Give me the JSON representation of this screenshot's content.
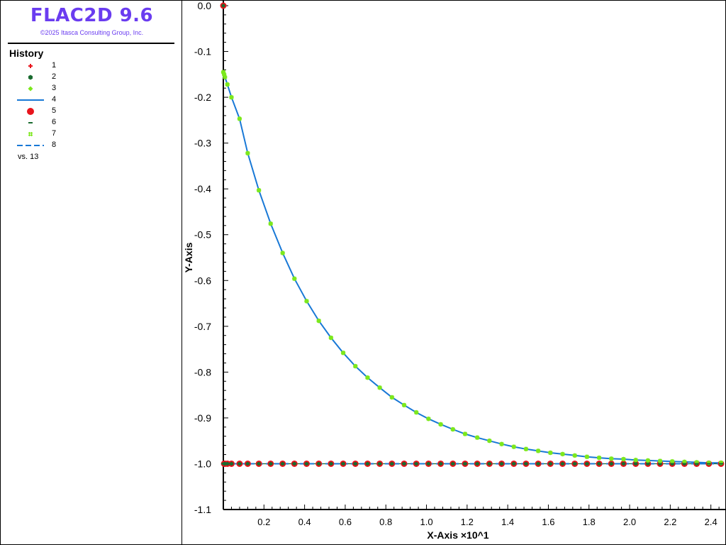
{
  "app": {
    "title": "FLAC2D 9.6",
    "copyright": "©2025 Itasca Consulting Group, Inc."
  },
  "legend": {
    "title": "History",
    "items": [
      {
        "label": "1",
        "symbol": "plus",
        "color": "#e8141c"
      },
      {
        "label": "2",
        "symbol": "hexagon",
        "color": "#1a6b30"
      },
      {
        "label": "3",
        "symbol": "diamond",
        "color": "#7ce81c"
      },
      {
        "label": "4",
        "symbol": "line",
        "color": "#1878d6"
      },
      {
        "label": "5",
        "symbol": "circle",
        "color": "#e8141c"
      },
      {
        "label": "6",
        "symbol": "dash",
        "color": "#1a6b30"
      },
      {
        "label": "7",
        "symbol": "hash",
        "color": "#7ce81c"
      },
      {
        "label": "8",
        "symbol": "dashed-line",
        "color": "#1878d6"
      }
    ],
    "vs": "vs. 13"
  },
  "chart_data": {
    "type": "line",
    "xlabel": "X-Axis ×10^1",
    "ylabel": "Y-Axis",
    "xlim": [
      0.0,
      2.45
    ],
    "ylim": [
      -1.1,
      0.0
    ],
    "x_ticks": [
      0.2,
      0.4,
      0.6,
      0.8,
      1.0,
      1.2,
      1.4,
      1.6,
      1.8,
      2.0,
      2.2,
      2.4
    ],
    "x_tick_labels": [
      "0.2",
      "0.4",
      "0.6",
      "0.8",
      "1.0",
      "1.2",
      "1.4",
      "1.6",
      "1.8",
      "2.0",
      "2.2",
      "2.4"
    ],
    "y_ticks": [
      0.0,
      -0.1,
      -0.2,
      -0.3,
      -0.4,
      -0.5,
      -0.6,
      -0.7,
      -0.8,
      -0.9,
      -1.0,
      -1.1
    ],
    "y_tick_labels": [
      "0.0",
      "-0.1",
      "-0.2",
      "-0.3",
      "-0.4",
      "-0.5",
      "-0.6",
      "-0.7",
      "-0.8",
      "-0.9",
      "-1.0",
      "-1.1"
    ],
    "grid": false,
    "x": [
      0.0,
      0.004,
      0.008,
      0.02,
      0.04,
      0.08,
      0.12,
      0.175,
      0.233,
      0.292,
      0.35,
      0.41,
      0.47,
      0.53,
      0.59,
      0.65,
      0.71,
      0.77,
      0.83,
      0.89,
      0.95,
      1.01,
      1.07,
      1.13,
      1.19,
      1.25,
      1.31,
      1.37,
      1.43,
      1.49,
      1.55,
      1.61,
      1.67,
      1.73,
      1.79,
      1.85,
      1.91,
      1.97,
      2.03,
      2.09,
      2.15,
      2.21,
      2.27,
      2.33,
      2.39,
      2.45
    ],
    "series": [
      {
        "name": "1",
        "style": "marker-plus",
        "color": "#e8141c",
        "values": [
          0.0,
          -1.0,
          -1.0,
          -1.0,
          -1.0,
          -1.0,
          -1.0,
          -1.0,
          -1.0,
          -1.0,
          -1.0,
          -1.0,
          -1.0,
          -1.0,
          -1.0,
          -1.0,
          -1.0,
          -1.0,
          -1.0,
          -1.0,
          -1.0,
          -1.0,
          -1.0,
          -1.0,
          -1.0,
          -1.0,
          -1.0,
          -1.0,
          -1.0,
          -1.0,
          -1.0,
          -1.0,
          -1.0,
          -1.0,
          -1.0,
          -1.0,
          -1.0,
          -1.0,
          -1.0,
          -1.0,
          -1.0,
          -1.0,
          -1.0,
          -1.0,
          -1.0,
          -1.0
        ]
      },
      {
        "name": "2",
        "style": "marker-hexagon",
        "color": "#1a6b30",
        "values": [
          0.0,
          -1.0,
          -1.0,
          -1.0,
          -1.0,
          -1.0,
          -1.0,
          -1.0,
          -1.0,
          -1.0,
          -1.0,
          -1.0,
          -1.0,
          -1.0,
          -1.0,
          -1.0,
          -1.0,
          -1.0,
          -1.0,
          -1.0,
          -1.0,
          -1.0,
          -1.0,
          -1.0,
          -1.0,
          -1.0,
          -1.0,
          -1.0,
          -1.0,
          -1.0,
          -1.0,
          -1.0,
          -1.0,
          -1.0,
          -1.0,
          -1.0,
          -1.0,
          -1.0,
          -1.0,
          -1.0,
          -1.0,
          -1.0,
          -1.0,
          -1.0,
          -1.0,
          -1.0
        ]
      },
      {
        "name": "3",
        "style": "marker-diamond",
        "color": "#7ce81c",
        "values": [
          -0.145,
          -0.15,
          -0.156,
          -0.172,
          -0.2,
          -0.247,
          -0.322,
          -0.403,
          -0.476,
          -0.54,
          -0.596,
          -0.645,
          -0.688,
          -0.725,
          -0.758,
          -0.787,
          -0.812,
          -0.834,
          -0.855,
          -0.872,
          -0.888,
          -0.902,
          -0.914,
          -0.925,
          -0.935,
          -0.943,
          -0.95,
          -0.957,
          -0.963,
          -0.968,
          -0.972,
          -0.976,
          -0.979,
          -0.982,
          -0.985,
          -0.987,
          -0.989,
          -0.99,
          -0.992,
          -0.993,
          -0.994,
          -0.995,
          -0.996,
          -0.997,
          -0.998,
          -0.998
        ]
      },
      {
        "name": "4",
        "style": "line",
        "color": "#1878d6",
        "values": [
          -0.145,
          -0.15,
          -0.156,
          -0.172,
          -0.2,
          -0.247,
          -0.322,
          -0.403,
          -0.476,
          -0.54,
          -0.596,
          -0.645,
          -0.688,
          -0.725,
          -0.758,
          -0.787,
          -0.812,
          -0.834,
          -0.855,
          -0.872,
          -0.888,
          -0.902,
          -0.914,
          -0.925,
          -0.935,
          -0.943,
          -0.95,
          -0.957,
          -0.963,
          -0.968,
          -0.972,
          -0.976,
          -0.979,
          -0.982,
          -0.985,
          -0.987,
          -0.989,
          -0.99,
          -0.992,
          -0.993,
          -0.994,
          -0.995,
          -0.996,
          -0.997,
          -0.998,
          -0.998
        ]
      },
      {
        "name": "5",
        "style": "marker-circle",
        "color": "#e8141c",
        "values": [
          0.0,
          -1.0,
          -1.0,
          -1.0,
          -1.0,
          -1.0,
          -1.0,
          -1.0,
          -1.0,
          -1.0,
          -1.0,
          -1.0,
          -1.0,
          -1.0,
          -1.0,
          -1.0,
          -1.0,
          -1.0,
          -1.0,
          -1.0,
          -1.0,
          -1.0,
          -1.0,
          -1.0,
          -1.0,
          -1.0,
          -1.0,
          -1.0,
          -1.0,
          -1.0,
          -1.0,
          -1.0,
          -1.0,
          -1.0,
          -1.0,
          -1.0,
          -1.0,
          -1.0,
          -1.0,
          -1.0,
          -1.0,
          -1.0,
          -1.0,
          -1.0,
          -1.0,
          -1.0
        ]
      },
      {
        "name": "6",
        "style": "line-dash-marker",
        "color": "#1a6b30",
        "values": [
          -1.0,
          -1.0,
          -1.0,
          -1.0,
          -1.0,
          -1.0,
          -1.0,
          -1.0,
          -1.0,
          -1.0,
          -1.0,
          -1.0,
          -1.0,
          -1.0,
          -1.0,
          -1.0,
          -1.0,
          -1.0,
          -1.0,
          -1.0,
          -1.0,
          -1.0,
          -1.0,
          -1.0,
          -1.0,
          -1.0,
          -1.0,
          -1.0,
          -1.0,
          -1.0,
          -1.0,
          -1.0,
          -1.0,
          -1.0,
          -1.0,
          -1.0,
          -1.0,
          -1.0,
          -1.0,
          -1.0,
          -1.0,
          -1.0,
          -1.0,
          -1.0,
          -1.0,
          -1.0
        ]
      },
      {
        "name": "7",
        "style": "marker-hash",
        "color": "#7ce81c",
        "values": [
          -0.145,
          -0.15,
          -0.156,
          -0.172,
          -0.2,
          -0.247,
          -0.322,
          -0.403,
          -0.476,
          -0.54,
          -0.596,
          -0.645,
          -0.688,
          -0.725,
          -0.758,
          -0.787,
          -0.812,
          -0.834,
          -0.855,
          -0.872,
          -0.888,
          -0.902,
          -0.914,
          -0.925,
          -0.935,
          -0.943,
          -0.95,
          -0.957,
          -0.963,
          -0.968,
          -0.972,
          -0.976,
          -0.979,
          -0.982,
          -0.985,
          -0.987,
          -0.989,
          -0.99,
          -0.992,
          -0.993,
          -0.994,
          -0.995,
          -0.996,
          -0.997,
          -0.998,
          -0.998
        ]
      },
      {
        "name": "8",
        "style": "dashed-line",
        "color": "#1878d6",
        "values": [
          -1.0,
          -1.0,
          -1.0,
          -1.0,
          -1.0,
          -1.0,
          -1.0,
          -1.0,
          -1.0,
          -1.0,
          -1.0,
          -1.0,
          -1.0,
          -1.0,
          -1.0,
          -1.0,
          -1.0,
          -1.0,
          -1.0,
          -1.0,
          -1.0,
          -1.0,
          -1.0,
          -1.0,
          -1.0,
          -1.0,
          -1.0,
          -1.0,
          -1.0,
          -1.0,
          -1.0,
          -1.0,
          -1.0,
          -1.0,
          -1.0,
          -1.0,
          -1.0,
          -1.0,
          -1.0,
          -1.0,
          -1.0,
          -1.0,
          -1.0,
          -1.0,
          -1.0,
          -1.0
        ]
      }
    ]
  }
}
